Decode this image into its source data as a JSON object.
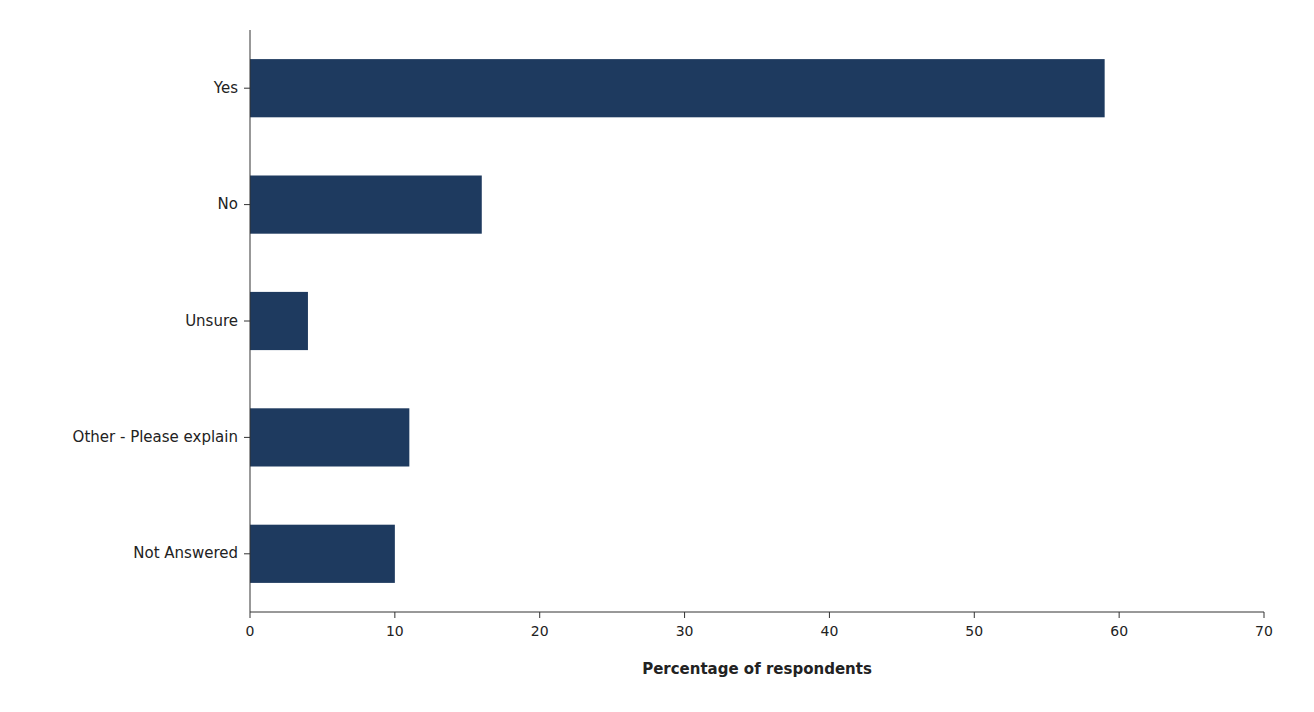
{
  "chart_data": {
    "type": "bar",
    "orientation": "horizontal",
    "categories": [
      "Not Answered",
      "Other - Please explain",
      "Unsure",
      "No",
      "Yes"
    ],
    "values": [
      10,
      11,
      4,
      16,
      59
    ],
    "color": "#1e3a5f",
    "xlabel": "Percentage of respondents",
    "xlim": [
      0,
      70
    ],
    "xticks": [
      0,
      10,
      20,
      30,
      40,
      50,
      60,
      70
    ],
    "grid": false
  }
}
